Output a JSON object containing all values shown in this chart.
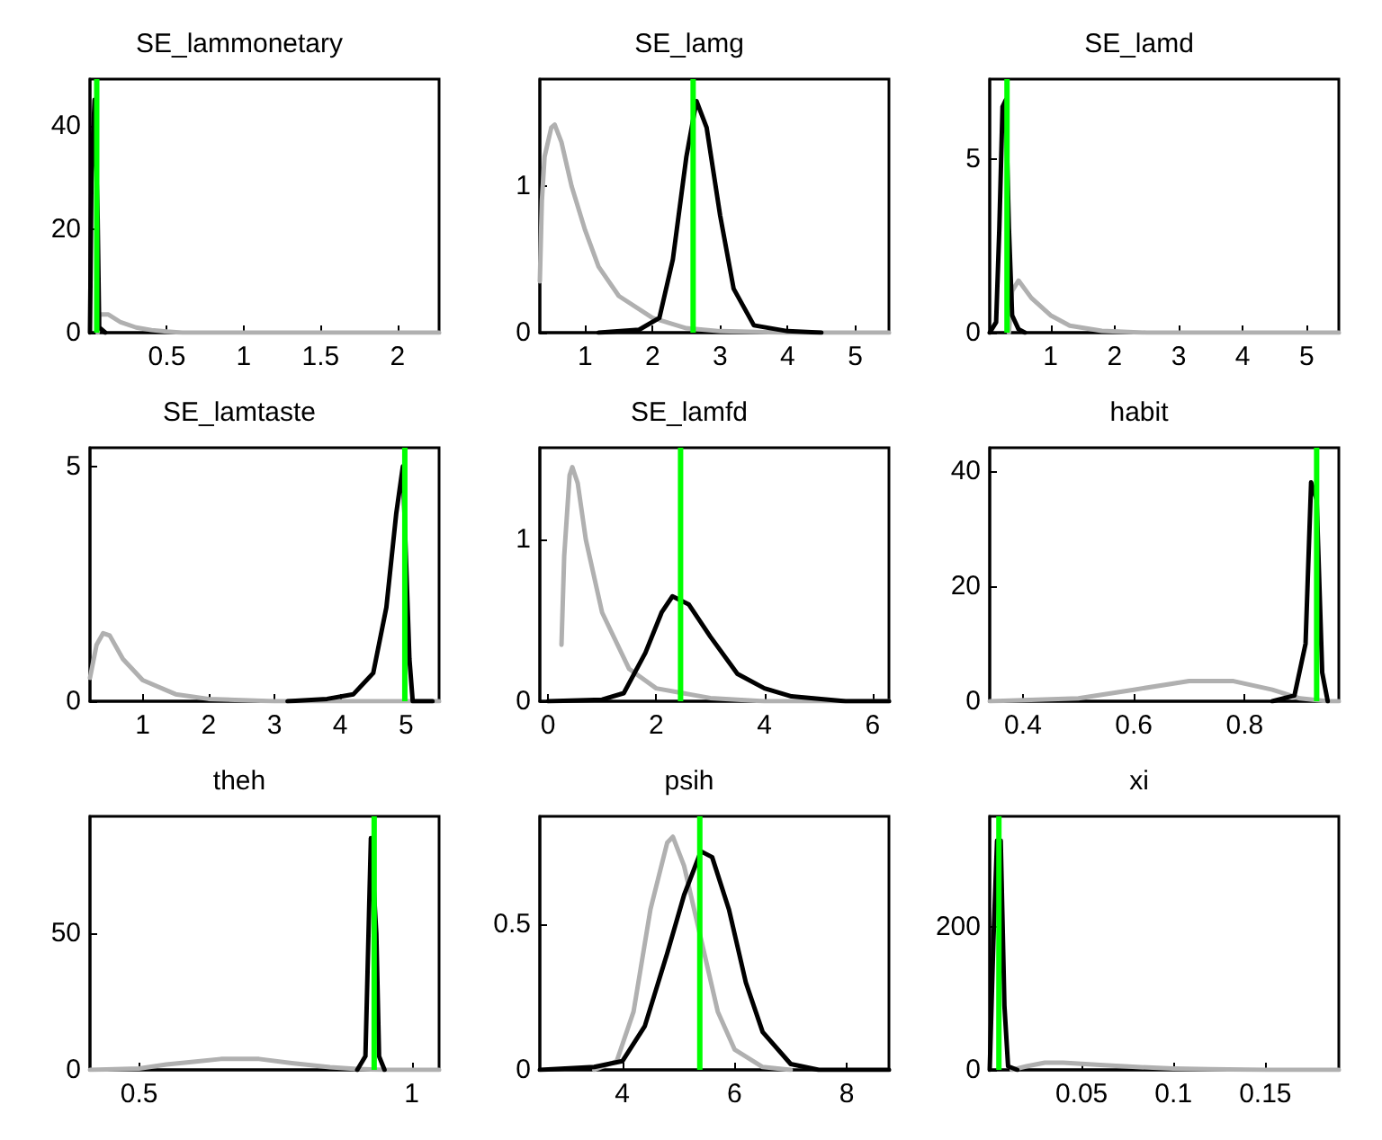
{
  "chart_data": [
    {
      "type": "line",
      "title": "SE_lammonetary",
      "xlim": [
        0.0,
        2.27
      ],
      "ylim": [
        0,
        49
      ],
      "xticks": [
        0.5,
        1,
        1.5,
        2
      ],
      "yticks": [
        0,
        20,
        40
      ],
      "grid": false,
      "marker": "none",
      "line_style": "solid",
      "series": [
        {
          "color": "#b0b0b0",
          "x": [
            0.05,
            0.06,
            0.12,
            0.2,
            0.3,
            0.4,
            0.5,
            0.6,
            1,
            2.27
          ],
          "values": [
            0,
            3.5,
            3.5,
            2,
            1,
            0.5,
            0.2,
            0,
            0,
            0
          ]
        },
        {
          "color": "#000000",
          "x": [
            0.0,
            0.01,
            0.03,
            0.05,
            0.06,
            0.1
          ],
          "values": [
            0,
            31,
            45,
            22,
            1,
            0
          ]
        }
      ],
      "ref_lines": [
        {
          "axis": "x",
          "value": 0.044,
          "color": "#00ff00"
        }
      ]
    },
    {
      "type": "line",
      "title": "SE_lamg",
      "xlim": [
        0.33,
        5.5
      ],
      "ylim": [
        0,
        1.73
      ],
      "xticks": [
        1,
        2,
        3,
        4,
        5
      ],
      "yticks": [
        0,
        1
      ],
      "grid": false,
      "marker": "none",
      "line_style": "solid",
      "series": [
        {
          "color": "#b0b0b0",
          "x": [
            0.33,
            0.36,
            0.4,
            0.5,
            0.55,
            0.65,
            0.8,
            1.0,
            1.2,
            1.5,
            2,
            2.5,
            3,
            4,
            5.5
          ],
          "values": [
            0.35,
            0.9,
            1.2,
            1.4,
            1.42,
            1.3,
            1.0,
            0.7,
            0.45,
            0.25,
            0.1,
            0.03,
            0.01,
            0,
            0
          ]
        },
        {
          "color": "#000000",
          "x": [
            1.2,
            1.8,
            2.1,
            2.3,
            2.5,
            2.65,
            2.8,
            3.0,
            3.2,
            3.5,
            4.0,
            4.5
          ],
          "values": [
            0,
            0.02,
            0.1,
            0.5,
            1.2,
            1.58,
            1.4,
            0.8,
            0.3,
            0.05,
            0.01,
            0
          ]
        }
      ],
      "ref_lines": [
        {
          "axis": "x",
          "value": 2.6,
          "color": "#00ff00"
        }
      ]
    },
    {
      "type": "line",
      "title": "SE_lamd",
      "xlim": [
        0.05,
        5.5
      ],
      "ylim": [
        0,
        7.3
      ],
      "xticks": [
        1,
        2,
        3,
        4,
        5
      ],
      "yticks": [
        0,
        5
      ],
      "grid": false,
      "marker": "none",
      "line_style": "solid",
      "series": [
        {
          "color": "#b0b0b0",
          "x": [
            0.35,
            0.4,
            0.5,
            0.7,
            1.0,
            1.3,
            1.8,
            2.5,
            5.5
          ],
          "values": [
            0,
            1.2,
            1.5,
            1.0,
            0.5,
            0.2,
            0.05,
            0,
            0
          ]
        },
        {
          "color": "#000000",
          "x": [
            0.05,
            0.15,
            0.2,
            0.25,
            0.3,
            0.35,
            0.4,
            0.5,
            0.6
          ],
          "values": [
            0,
            0.3,
            3,
            6.5,
            6.7,
            3,
            0.5,
            0.1,
            0
          ]
        }
      ],
      "ref_lines": [
        {
          "axis": "x",
          "value": 0.32,
          "color": "#00ff00"
        }
      ]
    },
    {
      "type": "line",
      "title": "SE_lamtaste",
      "xlim": [
        0.2,
        5.5
      ],
      "ylim": [
        0,
        5.4
      ],
      "xticks": [
        1,
        2,
        3,
        4,
        5
      ],
      "yticks": [
        0,
        5
      ],
      "grid": false,
      "marker": "none",
      "line_style": "solid",
      "series": [
        {
          "color": "#b0b0b0",
          "x": [
            0.2,
            0.3,
            0.4,
            0.5,
            0.7,
            1.0,
            1.5,
            2,
            3,
            5.5
          ],
          "values": [
            0.5,
            1.2,
            1.45,
            1.4,
            0.9,
            0.45,
            0.15,
            0.05,
            0,
            0
          ]
        },
        {
          "color": "#000000",
          "x": [
            3.2,
            3.8,
            4.2,
            4.5,
            4.7,
            4.85,
            4.95,
            5.05,
            5.1,
            5.4
          ],
          "values": [
            0,
            0.05,
            0.15,
            0.6,
            2,
            4,
            5,
            0.9,
            0,
            0
          ]
        }
      ],
      "ref_lines": [
        {
          "axis": "x",
          "value": 4.98,
          "color": "#00ff00"
        }
      ]
    },
    {
      "type": "line",
      "title": "SE_lamfd",
      "xlim": [
        -0.15,
        6.3
      ],
      "ylim": [
        0,
        1.57
      ],
      "xticks": [
        0,
        2,
        4,
        6
      ],
      "yticks": [
        0,
        1
      ],
      "grid": false,
      "marker": "none",
      "line_style": "solid",
      "series": [
        {
          "color": "#b0b0b0",
          "x": [
            0.25,
            0.3,
            0.4,
            0.45,
            0.55,
            0.7,
            1.0,
            1.5,
            2,
            3,
            4,
            6.3
          ],
          "values": [
            0.35,
            0.9,
            1.4,
            1.45,
            1.35,
            1.0,
            0.55,
            0.2,
            0.08,
            0.02,
            0,
            0
          ]
        },
        {
          "color": "#000000",
          "x": [
            0,
            1,
            1.4,
            1.8,
            2.1,
            2.3,
            2.6,
            3.0,
            3.5,
            4.0,
            4.5,
            5.5,
            6.3
          ],
          "values": [
            0,
            0.01,
            0.05,
            0.3,
            0.55,
            0.65,
            0.6,
            0.4,
            0.17,
            0.08,
            0.03,
            0,
            0
          ]
        }
      ],
      "ref_lines": [
        {
          "axis": "x",
          "value": 2.45,
          "color": "#00ff00"
        }
      ]
    },
    {
      "type": "line",
      "title": "habit",
      "xlim": [
        0.34,
        0.97
      ],
      "ylim": [
        0,
        44
      ],
      "xticks": [
        0.4,
        0.6,
        0.8
      ],
      "yticks": [
        0,
        20,
        40
      ],
      "grid": false,
      "marker": "none",
      "line_style": "solid",
      "series": [
        {
          "color": "#b0b0b0",
          "x": [
            0.34,
            0.5,
            0.6,
            0.7,
            0.78,
            0.85,
            0.9,
            0.95,
            0.97
          ],
          "values": [
            0,
            0.5,
            2,
            3.5,
            3.5,
            2,
            0.5,
            0,
            0
          ]
        },
        {
          "color": "#000000",
          "x": [
            0.85,
            0.89,
            0.91,
            0.92,
            0.93,
            0.94,
            0.95
          ],
          "values": [
            0,
            1,
            10,
            38,
            35,
            5,
            0
          ]
        }
      ],
      "ref_lines": [
        {
          "axis": "x",
          "value": 0.93,
          "color": "#00ff00"
        }
      ]
    },
    {
      "type": "line",
      "title": "theh",
      "xlim": [
        0.41,
        1.05
      ],
      "ylim": [
        0,
        93
      ],
      "xticks": [
        0.5,
        1
      ],
      "yticks": [
        0,
        50
      ],
      "grid": false,
      "marker": "none",
      "line_style": "solid",
      "series": [
        {
          "color": "#b0b0b0",
          "x": [
            0.41,
            0.5,
            0.55,
            0.6,
            0.65,
            0.72,
            0.78,
            0.85,
            0.9,
            0.95,
            1.05
          ],
          "values": [
            0,
            0.5,
            2,
            3,
            4,
            4,
            2.5,
            1,
            0.3,
            0,
            0
          ]
        },
        {
          "color": "#000000",
          "x": [
            0.9,
            0.915,
            0.92,
            0.925,
            0.935,
            0.94,
            0.95
          ],
          "values": [
            0,
            5,
            45,
            85,
            50,
            5,
            0
          ]
        }
      ],
      "ref_lines": [
        {
          "axis": "x",
          "value": 0.931,
          "color": "#00ff00"
        }
      ]
    },
    {
      "type": "line",
      "title": "psih",
      "xlim": [
        2.53,
        8.75
      ],
      "ylim": [
        0,
        0.87
      ],
      "xticks": [
        4,
        6,
        8
      ],
      "yticks": [
        0,
        0.5
      ],
      "grid": false,
      "marker": "none",
      "line_style": "solid",
      "series": [
        {
          "color": "#b0b0b0",
          "x": [
            3.5,
            3.9,
            4.2,
            4.5,
            4.8,
            4.9,
            5.1,
            5.4,
            5.7,
            6.0,
            6.5,
            7
          ],
          "values": [
            0,
            0.03,
            0.2,
            0.55,
            0.78,
            0.8,
            0.7,
            0.45,
            0.2,
            0.07,
            0.01,
            0
          ]
        },
        {
          "color": "#000000",
          "x": [
            2.53,
            3.5,
            4.0,
            4.4,
            4.8,
            5.1,
            5.4,
            5.6,
            5.9,
            6.2,
            6.5,
            7.0,
            7.5,
            8.75
          ],
          "values": [
            0,
            0.01,
            0.03,
            0.15,
            0.4,
            0.6,
            0.75,
            0.73,
            0.55,
            0.3,
            0.13,
            0.02,
            0,
            0
          ]
        }
      ],
      "ref_lines": [
        {
          "axis": "x",
          "value": 5.38,
          "color": "#00ff00"
        }
      ]
    },
    {
      "type": "line",
      "title": "xi",
      "xlim": [
        0,
        0.19
      ],
      "ylim": [
        0,
        354
      ],
      "xticks": [
        0.05,
        0.1,
        0.15
      ],
      "yticks": [
        0,
        200
      ],
      "grid": false,
      "marker": "none",
      "line_style": "solid",
      "series": [
        {
          "color": "#b0b0b0",
          "x": [
            0.012,
            0.02,
            0.03,
            0.04,
            0.06,
            0.08,
            0.1,
            0.12,
            0.15,
            0.19
          ],
          "values": [
            0,
            5,
            10,
            10,
            7,
            4,
            2,
            1,
            0,
            0
          ]
        },
        {
          "color": "#000000",
          "x": [
            0,
            0.002,
            0.004,
            0.006,
            0.008,
            0.01,
            0.015
          ],
          "values": [
            0,
            180,
            320,
            320,
            90,
            5,
            0
          ]
        }
      ],
      "ref_lines": [
        {
          "axis": "x",
          "value": 0.005,
          "color": "#00ff00"
        }
      ]
    }
  ]
}
